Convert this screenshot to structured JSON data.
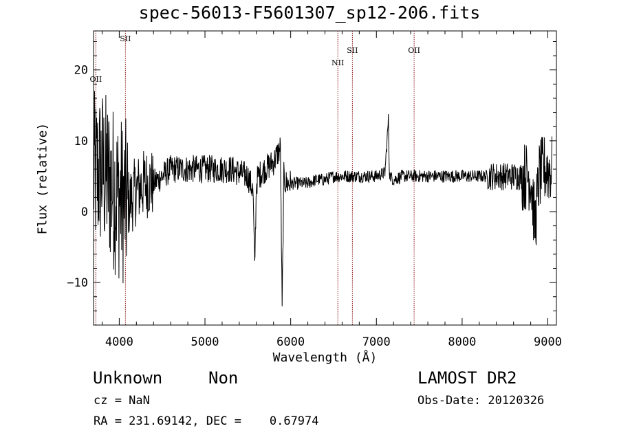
{
  "chart_data": {
    "type": "line",
    "title": "spec-56013-F5601307_sp12-206.fits",
    "xlabel": "Wavelength (Å)",
    "ylabel": "Flux (relative)",
    "xlim": [
      3700,
      9100
    ],
    "ylim": [
      -16,
      25.5
    ],
    "xticks": [
      4000,
      5000,
      6000,
      7000,
      8000,
      9000
    ],
    "xtick_labels": [
      "4000",
      "5000",
      "6000",
      "7000",
      "8000",
      "9000"
    ],
    "yticks": [
      -10,
      0,
      10,
      20
    ],
    "ytick_labels": [
      "−10",
      "0",
      "10",
      "20"
    ],
    "grid": false,
    "series": [
      {
        "x": [
          3700,
          3800,
          3900,
          4000,
          4100,
          4200,
          4300,
          4400,
          4500,
          4600,
          4700,
          4800,
          4900,
          5000,
          5100,
          5200,
          5300,
          5400,
          5500,
          5560,
          5580,
          5600,
          5620,
          5700,
          5800,
          5880,
          5900,
          5920,
          5940,
          6000,
          6100,
          6200,
          6300,
          6400,
          6500,
          6600,
          6700,
          6800,
          6900,
          7000,
          7100,
          7140,
          7150,
          7160,
          7200,
          7300,
          7400,
          7500,
          7600,
          7700,
          7800,
          7900,
          8000,
          8100,
          8200,
          8300,
          8400,
          8500,
          8600,
          8700,
          8800,
          8850,
          8900,
          8950,
          9000,
          9050
        ],
        "y": [
          5,
          6,
          4,
          2,
          1,
          3,
          4,
          4,
          5,
          6,
          6,
          6,
          6,
          6,
          6,
          6,
          6,
          5.5,
          5,
          3,
          -8,
          4,
          5,
          6,
          7,
          9,
          -14,
          5,
          4,
          4,
          4,
          4,
          4.5,
          4.5,
          5,
          5,
          5,
          5,
          5,
          5,
          5.5,
          13,
          6,
          5,
          4.5,
          5,
          5,
          5,
          5,
          5,
          5,
          5,
          5,
          5,
          5,
          5,
          5,
          5,
          5,
          5,
          5,
          -2,
          5,
          6,
          6,
          6
        ]
      }
    ],
    "reference_lines": [
      {
        "label": "OII",
        "x": 3727
      },
      {
        "label": "SII",
        "x": 4072
      },
      {
        "label": "NII",
        "x": 6550
      },
      {
        "label": "SII",
        "x": 6720
      },
      {
        "label": "OII",
        "x": 7440
      }
    ]
  },
  "info": {
    "object_class": "Unknown",
    "object_subclass": "Non",
    "survey": "LAMOST DR2",
    "cz": "cz = NaN",
    "obs_date": "Obs-Date: 20120326",
    "ra_dec": "RA = 231.69142, DEC =    0.67974"
  }
}
